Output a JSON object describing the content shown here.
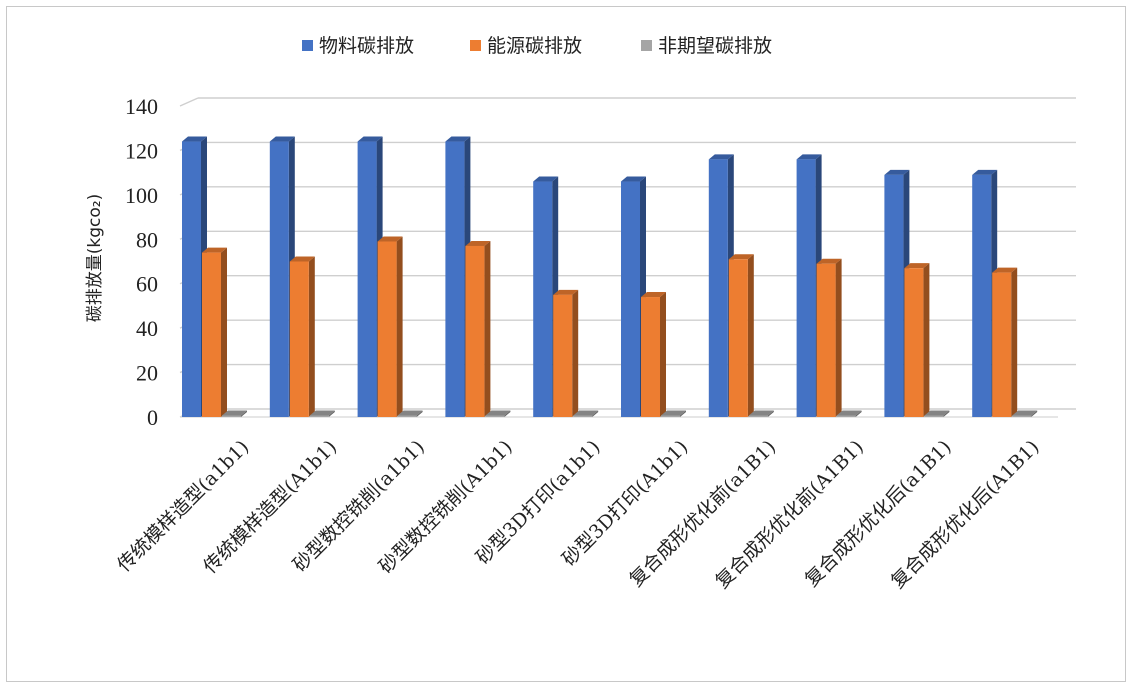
{
  "chart_data": {
    "type": "bar",
    "title": "",
    "ylabel": "碳排放量(kgco₂)",
    "xlabel": "",
    "ylim": [
      0,
      140
    ],
    "yticks": [
      0,
      20,
      40,
      60,
      80,
      100,
      120,
      140
    ],
    "grid": true,
    "legend_position": "top",
    "categories": [
      "传统模样造型(a1b1)",
      "传统模样造型(A1b1)",
      "砂型数控铣削(a1b1)",
      "砂型数控铣削(A1b1)",
      "砂型3D打印(a1b1)",
      "砂型3D打印(A1b1)",
      "复合成形优化前(a1B1)",
      "复合成形优化前(A1B1)",
      "复合成形优化后(a1B1)",
      "复合成形优化后(A1B1)"
    ],
    "series": [
      {
        "name": "物料碳排放",
        "color": "#4472C4",
        "values": [
          124,
          124,
          124,
          124,
          106,
          106,
          116,
          116,
          109,
          109
        ]
      },
      {
        "name": "能源碳排放",
        "color": "#ED7D31",
        "values": [
          74,
          70,
          79,
          77,
          55,
          54,
          71,
          69,
          67,
          65
        ]
      },
      {
        "name": "非期望碳排放",
        "color": "#A5A5A5",
        "values": [
          0.5,
          0.5,
          0.5,
          0.5,
          0.5,
          0.5,
          0.5,
          0.5,
          0.5,
          0.5
        ]
      }
    ]
  }
}
